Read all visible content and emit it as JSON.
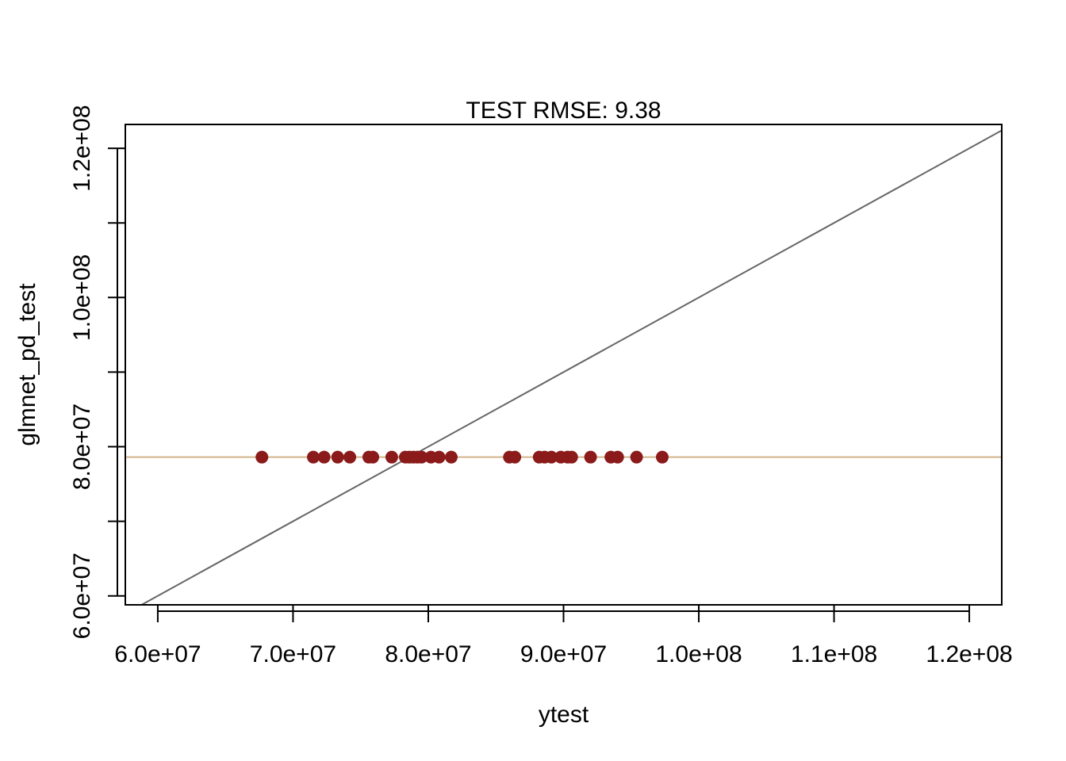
{
  "chart_data": {
    "type": "scatter",
    "title": "TEST RMSE: 9.38",
    "xlabel": "ytest",
    "ylabel": "glmnet_pd_test",
    "xlim": [
      57600000,
      122400000
    ],
    "ylim": [
      58800000,
      123200000
    ],
    "x_ticks": [
      60000000,
      70000000,
      80000000,
      90000000,
      100000000,
      110000000,
      120000000
    ],
    "x_tick_labels": [
      "6.0e+07",
      "7.0e+07",
      "8.0e+07",
      "9.0e+07",
      "1.0e+08",
      "1.1e+08",
      "1.2e+08"
    ],
    "y_ticks": [
      60000000,
      70000000,
      80000000,
      90000000,
      100000000,
      110000000,
      120000000
    ],
    "y_tick_labels": [
      "6.0e+07",
      "",
      "8.0e+07",
      "",
      "1.0e+08",
      "",
      "1.2e+08"
    ],
    "grid": false,
    "point_color": "#8B1A1A",
    "series": [
      {
        "x": [
          67700000,
          71500000,
          72300000,
          73300000,
          74200000,
          75600000,
          75900000,
          77300000,
          78300000,
          78600000,
          78900000,
          79200000,
          79500000,
          80200000,
          80800000,
          81700000,
          86000000,
          86400000,
          88200000,
          88600000,
          89100000,
          89800000,
          90300000,
          90600000,
          92000000,
          93500000,
          94000000,
          95400000,
          97300000
        ],
        "y": [
          78600000,
          78600000,
          78600000,
          78600000,
          78600000,
          78600000,
          78600000,
          78600000,
          78600000,
          78600000,
          78600000,
          78600000,
          78600000,
          78600000,
          78600000,
          78600000,
          78600000,
          78600000,
          78600000,
          78600000,
          78600000,
          78600000,
          78600000,
          78600000,
          78600000,
          78600000,
          78600000,
          78600000,
          78600000
        ]
      }
    ],
    "reference_lines": [
      {
        "type": "identity",
        "intercept": 0,
        "slope": 1,
        "color": "#666666"
      },
      {
        "type": "horizontal",
        "y": 78600000,
        "color": "#D2B48C"
      }
    ]
  }
}
